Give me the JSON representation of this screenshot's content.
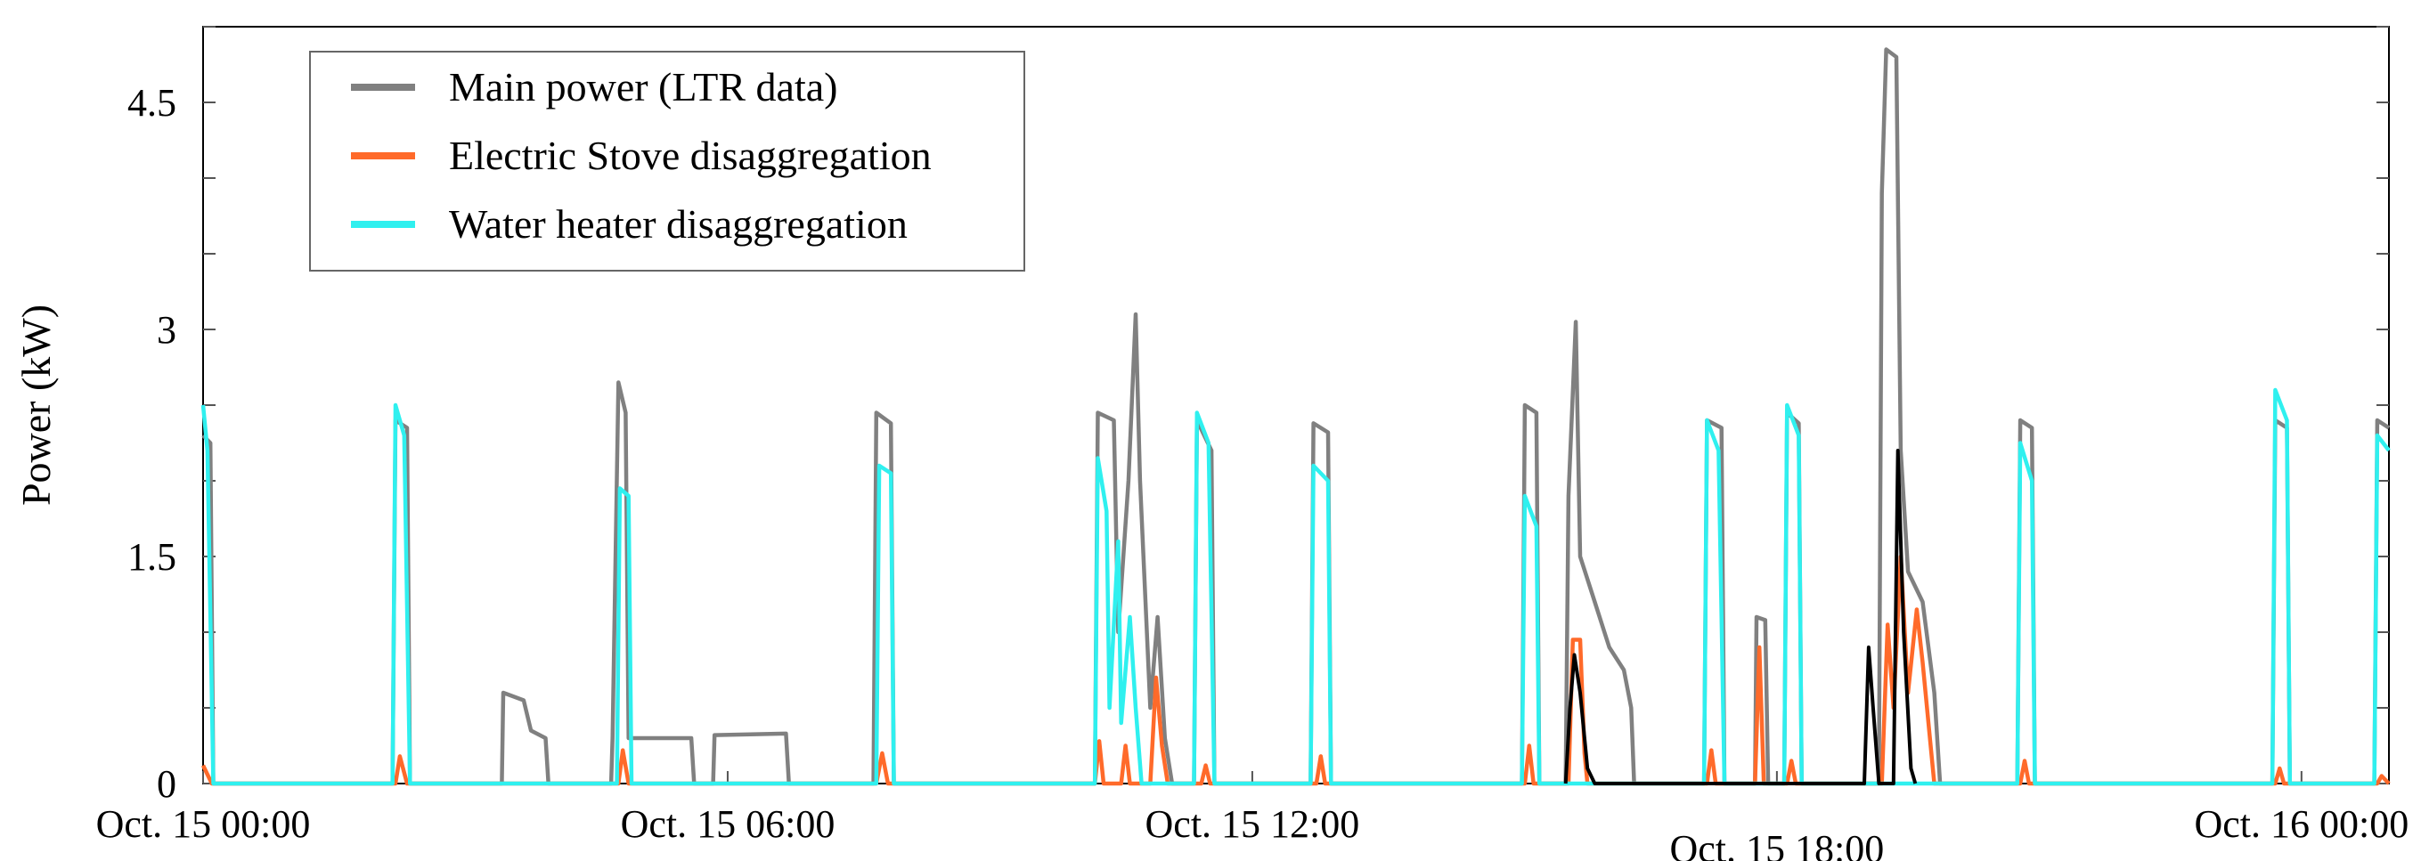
{
  "chart_data": {
    "type": "line",
    "title": "",
    "xlabel": "",
    "ylabel": "Power (kW)",
    "xlim": [
      "Oct. 15 00:00",
      "Oct. 16 01:00"
    ],
    "ylim": [
      0,
      5.0
    ],
    "y_ticks": [
      0,
      1.5,
      3,
      4.5
    ],
    "y_tick_labels": [
      "0",
      "1.5",
      "3",
      "4.5"
    ],
    "x_ticks": [
      "Oct. 15 00:00",
      "Oct. 15 06:00",
      "Oct. 15 12:00",
      "Oct. 15 18:00",
      "Oct. 16 00:00"
    ],
    "grid": false,
    "legend_position": "top-left",
    "series": [
      {
        "name": "Main power (LTR data)",
        "color": "#808080",
        "points": [
          [
            "Oct. 15 00:00",
            2.3
          ],
          [
            "Oct. 15 00:05",
            2.25
          ],
          [
            "Oct. 15 00:07",
            0
          ],
          [
            "Oct. 15 02:10",
            0
          ],
          [
            "Oct. 15 02:12",
            2.4
          ],
          [
            "Oct. 15 02:20",
            2.35
          ],
          [
            "Oct. 15 02:22",
            0
          ],
          [
            "Oct. 15 03:25",
            0
          ],
          [
            "Oct. 15 03:26",
            0.6
          ],
          [
            "Oct. 15 03:40",
            0.55
          ],
          [
            "Oct. 15 03:45",
            0.35
          ],
          [
            "Oct. 15 03:55",
            0.3
          ],
          [
            "Oct. 15 03:57",
            0
          ],
          [
            "Oct. 15 04:40",
            0
          ],
          [
            "Oct. 15 04:41",
            0.3
          ],
          [
            "Oct. 15 04:45",
            2.65
          ],
          [
            "Oct. 15 04:50",
            2.45
          ],
          [
            "Oct. 15 04:52",
            0.3
          ],
          [
            "Oct. 15 05:35",
            0.3
          ],
          [
            "Oct. 15 05:37",
            0
          ],
          [
            "Oct. 15 05:50",
            0
          ],
          [
            "Oct. 15 05:51",
            0.32
          ],
          [
            "Oct. 15 06:40",
            0.33
          ],
          [
            "Oct. 15 06:42",
            0
          ],
          [
            "Oct. 15 07:40",
            0
          ],
          [
            "Oct. 15 07:42",
            2.45
          ],
          [
            "Oct. 15 07:52",
            2.38
          ],
          [
            "Oct. 15 07:54",
            0
          ],
          [
            "Oct. 15 10:12",
            0
          ],
          [
            "Oct. 15 10:14",
            2.45
          ],
          [
            "Oct. 15 10:25",
            2.4
          ],
          [
            "Oct. 15 10:28",
            1.0
          ],
          [
            "Oct. 15 10:35",
            2.0
          ],
          [
            "Oct. 15 10:40",
            3.1
          ],
          [
            "Oct. 15 10:43",
            2.0
          ],
          [
            "Oct. 15 10:50",
            0.5
          ],
          [
            "Oct. 15 10:55",
            1.1
          ],
          [
            "Oct. 15 11:00",
            0.3
          ],
          [
            "Oct. 15 11:05",
            0
          ],
          [
            "Oct. 15 11:20",
            0
          ],
          [
            "Oct. 15 11:22",
            2.4
          ],
          [
            "Oct. 15 11:32",
            2.2
          ],
          [
            "Oct. 15 11:34",
            0
          ],
          [
            "Oct. 15 12:40",
            0
          ],
          [
            "Oct. 15 12:42",
            2.38
          ],
          [
            "Oct. 15 12:52",
            2.32
          ],
          [
            "Oct. 15 12:54",
            0
          ],
          [
            "Oct. 15 15:05",
            0
          ],
          [
            "Oct. 15 15:07",
            2.5
          ],
          [
            "Oct. 15 15:15",
            2.45
          ],
          [
            "Oct. 15 15:17",
            0
          ],
          [
            "Oct. 15 15:35",
            0
          ],
          [
            "Oct. 15 15:37",
            1.9
          ],
          [
            "Oct. 15 15:42",
            3.05
          ],
          [
            "Oct. 15 15:45",
            1.5
          ],
          [
            "Oct. 15 15:55",
            1.2
          ],
          [
            "Oct. 15 16:05",
            0.9
          ],
          [
            "Oct. 15 16:15",
            0.75
          ],
          [
            "Oct. 15 16:20",
            0.5
          ],
          [
            "Oct. 15 16:22",
            0
          ],
          [
            "Oct. 15 17:10",
            0
          ],
          [
            "Oct. 15 17:12",
            2.4
          ],
          [
            "Oct. 15 17:22",
            2.35
          ],
          [
            "Oct. 15 17:24",
            0
          ],
          [
            "Oct. 15 17:45",
            0
          ],
          [
            "Oct. 15 17:46",
            1.1
          ],
          [
            "Oct. 15 17:52",
            1.08
          ],
          [
            "Oct. 15 17:54",
            0
          ],
          [
            "Oct. 15 18:05",
            0
          ],
          [
            "Oct. 15 18:07",
            2.45
          ],
          [
            "Oct. 15 18:15",
            2.38
          ],
          [
            "Oct. 15 18:17",
            0
          ],
          [
            "Oct. 15 19:10",
            0
          ],
          [
            "Oct. 15 19:12",
            3.9
          ],
          [
            "Oct. 15 19:15",
            4.85
          ],
          [
            "Oct. 15 19:22",
            4.8
          ],
          [
            "Oct. 15 19:25",
            2.2
          ],
          [
            "Oct. 15 19:30",
            1.4
          ],
          [
            "Oct. 15 19:40",
            1.2
          ],
          [
            "Oct. 15 19:48",
            0.6
          ],
          [
            "Oct. 15 19:52",
            0
          ],
          [
            "Oct. 15 20:45",
            0
          ],
          [
            "Oct. 15 20:47",
            2.4
          ],
          [
            "Oct. 15 20:55",
            2.35
          ],
          [
            "Oct. 15 20:57",
            0
          ],
          [
            "Oct. 15 23:40",
            0
          ],
          [
            "Oct. 15 23:42",
            2.4
          ],
          [
            "Oct. 15 23:50",
            2.35
          ],
          [
            "Oct. 15 23:52",
            0
          ],
          [
            "Oct. 16 00:50",
            0
          ],
          [
            "Oct. 16 00:52",
            2.4
          ],
          [
            "Oct. 16 01:00",
            2.35
          ]
        ]
      },
      {
        "name": "Electric Stove disaggregation",
        "color": "#ff6a2a",
        "points": [
          [
            "Oct. 15 00:00",
            0.12
          ],
          [
            "Oct. 15 00:06",
            0
          ],
          [
            "Oct. 15 02:12",
            0
          ],
          [
            "Oct. 15 02:15",
            0.18
          ],
          [
            "Oct. 15 02:20",
            0
          ],
          [
            "Oct. 15 04:45",
            0
          ],
          [
            "Oct. 15 04:48",
            0.22
          ],
          [
            "Oct. 15 04:52",
            0
          ],
          [
            "Oct. 15 07:42",
            0
          ],
          [
            "Oct. 15 07:46",
            0.2
          ],
          [
            "Oct. 15 07:50",
            0
          ],
          [
            "Oct. 15 10:12",
            0
          ],
          [
            "Oct. 15 10:15",
            0.28
          ],
          [
            "Oct. 15 10:18",
            0
          ],
          [
            "Oct. 15 10:30",
            0
          ],
          [
            "Oct. 15 10:33",
            0.25
          ],
          [
            "Oct. 15 10:36",
            0
          ],
          [
            "Oct. 15 10:50",
            0
          ],
          [
            "Oct. 15 10:54",
            0.7
          ],
          [
            "Oct. 15 10:58",
            0.25
          ],
          [
            "Oct. 15 11:02",
            0
          ],
          [
            "Oct. 15 11:25",
            0
          ],
          [
            "Oct. 15 11:28",
            0.12
          ],
          [
            "Oct. 15 11:31",
            0
          ],
          [
            "Oct. 15 12:44",
            0
          ],
          [
            "Oct. 15 12:47",
            0.18
          ],
          [
            "Oct. 15 12:50",
            0
          ],
          [
            "Oct. 15 15:07",
            0
          ],
          [
            "Oct. 15 15:10",
            0.25
          ],
          [
            "Oct. 15 15:13",
            0
          ],
          [
            "Oct. 15 15:37",
            0
          ],
          [
            "Oct. 15 15:40",
            0.95
          ],
          [
            "Oct. 15 15:45",
            0.95
          ],
          [
            "Oct. 15 15:48",
            0.2
          ],
          [
            "Oct. 15 15:50",
            0
          ],
          [
            "Oct. 15 17:12",
            0
          ],
          [
            "Oct. 15 17:15",
            0.22
          ],
          [
            "Oct. 15 17:18",
            0
          ],
          [
            "Oct. 15 17:45",
            0
          ],
          [
            "Oct. 15 17:48",
            0.9
          ],
          [
            "Oct. 15 17:51",
            0
          ],
          [
            "Oct. 15 18:07",
            0
          ],
          [
            "Oct. 15 18:10",
            0.15
          ],
          [
            "Oct. 15 18:13",
            0
          ],
          [
            "Oct. 15 19:12",
            0
          ],
          [
            "Oct. 15 19:16",
            1.05
          ],
          [
            "Oct. 15 19:20",
            0.5
          ],
          [
            "Oct. 15 19:25",
            1.5
          ],
          [
            "Oct. 15 19:30",
            0.6
          ],
          [
            "Oct. 15 19:36",
            1.15
          ],
          [
            "Oct. 15 19:40",
            0.8
          ],
          [
            "Oct. 15 19:46",
            0.2
          ],
          [
            "Oct. 15 19:48",
            0
          ],
          [
            "Oct. 15 20:47",
            0
          ],
          [
            "Oct. 15 20:50",
            0.15
          ],
          [
            "Oct. 15 20:53",
            0
          ],
          [
            "Oct. 15 23:42",
            0
          ],
          [
            "Oct. 15 23:45",
            0.1
          ],
          [
            "Oct. 15 23:48",
            0
          ],
          [
            "Oct. 16 00:52",
            0
          ],
          [
            "Oct. 16 00:55",
            0.05
          ],
          [
            "Oct. 16 01:00",
            0
          ]
        ]
      },
      {
        "name": "Water heater disaggregation",
        "color": "#2ff0ef",
        "points": [
          [
            "Oct. 15 00:00",
            2.5
          ],
          [
            "Oct. 15 00:03",
            2.2
          ],
          [
            "Oct. 15 00:07",
            0
          ],
          [
            "Oct. 15 02:10",
            0
          ],
          [
            "Oct. 15 02:12",
            2.5
          ],
          [
            "Oct. 15 02:18",
            2.3
          ],
          [
            "Oct. 15 02:22",
            0
          ],
          [
            "Oct. 15 04:44",
            0
          ],
          [
            "Oct. 15 04:46",
            1.95
          ],
          [
            "Oct. 15 04:52",
            1.9
          ],
          [
            "Oct. 15 04:54",
            0
          ],
          [
            "Oct. 15 07:42",
            0
          ],
          [
            "Oct. 15 07:44",
            2.1
          ],
          [
            "Oct. 15 07:52",
            2.05
          ],
          [
            "Oct. 15 07:54",
            0
          ],
          [
            "Oct. 15 10:12",
            0
          ],
          [
            "Oct. 15 10:14",
            2.15
          ],
          [
            "Oct. 15 10:20",
            1.8
          ],
          [
            "Oct. 15 10:22",
            0.5
          ],
          [
            "Oct. 15 10:28",
            1.6
          ],
          [
            "Oct. 15 10:30",
            0.4
          ],
          [
            "Oct. 15 10:36",
            1.1
          ],
          [
            "Oct. 15 10:40",
            0.5
          ],
          [
            "Oct. 15 10:44",
            0
          ],
          [
            "Oct. 15 11:20",
            0
          ],
          [
            "Oct. 15 11:22",
            2.45
          ],
          [
            "Oct. 15 11:30",
            2.25
          ],
          [
            "Oct. 15 11:34",
            0
          ],
          [
            "Oct. 15 12:40",
            0
          ],
          [
            "Oct. 15 12:42",
            2.1
          ],
          [
            "Oct. 15 12:52",
            2.0
          ],
          [
            "Oct. 15 12:54",
            0
          ],
          [
            "Oct. 15 15:05",
            0
          ],
          [
            "Oct. 15 15:07",
            1.9
          ],
          [
            "Oct. 15 15:15",
            1.7
          ],
          [
            "Oct. 15 15:17",
            0
          ],
          [
            "Oct. 15 17:10",
            0
          ],
          [
            "Oct. 15 17:12",
            2.4
          ],
          [
            "Oct. 15 17:20",
            2.2
          ],
          [
            "Oct. 15 17:24",
            0
          ],
          [
            "Oct. 15 18:05",
            0
          ],
          [
            "Oct. 15 18:07",
            2.5
          ],
          [
            "Oct. 15 18:15",
            2.3
          ],
          [
            "Oct. 15 18:17",
            0
          ],
          [
            "Oct. 15 20:45",
            0
          ],
          [
            "Oct. 15 20:47",
            2.25
          ],
          [
            "Oct. 15 20:55",
            2.0
          ],
          [
            "Oct. 15 20:57",
            0
          ],
          [
            "Oct. 15 23:40",
            0
          ],
          [
            "Oct. 15 23:42",
            2.6
          ],
          [
            "Oct. 15 23:50",
            2.4
          ],
          [
            "Oct. 15 23:52",
            0
          ],
          [
            "Oct. 16 00:50",
            0
          ],
          [
            "Oct. 16 00:52",
            2.3
          ],
          [
            "Oct. 16 01:00",
            2.2
          ]
        ]
      },
      {
        "name": "",
        "color": "#000000",
        "points": [
          [
            "Oct. 15 15:35",
            0
          ],
          [
            "Oct. 15 15:38",
            0.5
          ],
          [
            "Oct. 15 15:41",
            0.85
          ],
          [
            "Oct. 15 15:45",
            0.6
          ],
          [
            "Oct. 15 15:50",
            0.1
          ],
          [
            "Oct. 15 15:55",
            0
          ],
          [
            "Oct. 15 19:00",
            0
          ],
          [
            "Oct. 15 19:03",
            0.9
          ],
          [
            "Oct. 15 19:06",
            0.5
          ],
          [
            "Oct. 15 19:10",
            0
          ],
          [
            "Oct. 15 19:20",
            0
          ],
          [
            "Oct. 15 19:23",
            2.2
          ],
          [
            "Oct. 15 19:27",
            1.0
          ],
          [
            "Oct. 15 19:32",
            0.1
          ],
          [
            "Oct. 15 19:35",
            0
          ]
        ]
      }
    ]
  }
}
